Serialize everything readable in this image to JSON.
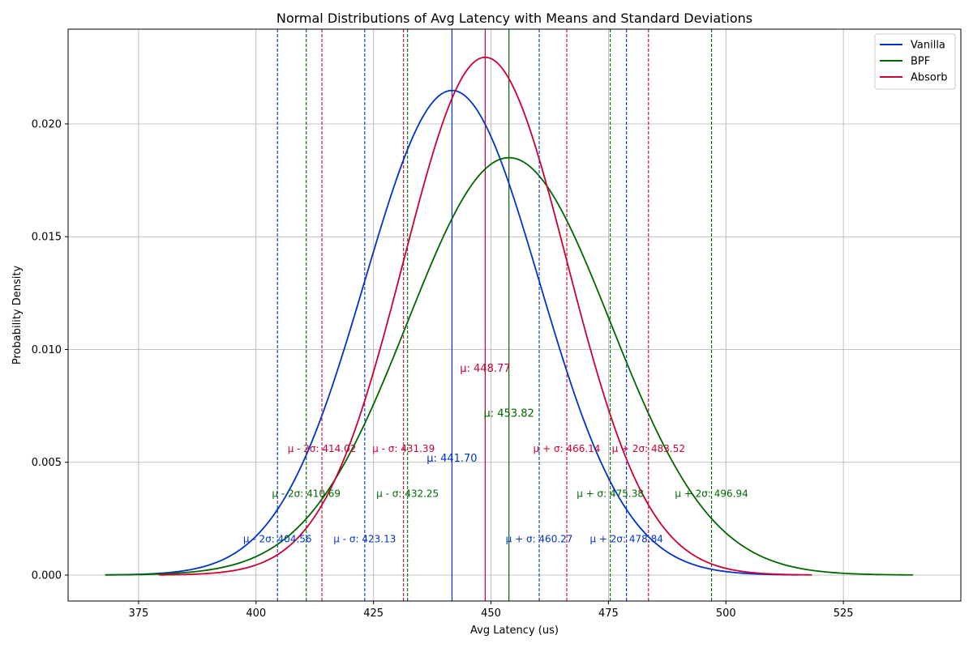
{
  "chart_data": {
    "type": "line",
    "title": "Normal Distributions of Avg Latency with Means and Standard Deviations",
    "xlabel": "Avg Latency (us)",
    "ylabel": "Probability Density",
    "xlim": [
      360,
      550
    ],
    "ylim": [
      -0.00115,
      0.0242
    ],
    "xticks": [
      375,
      400,
      425,
      450,
      475,
      500,
      525
    ],
    "yticks": [
      0.0,
      0.005,
      0.01,
      0.015,
      0.02
    ],
    "ytick_labels": [
      "0.000",
      "0.005",
      "0.010",
      "0.015",
      "0.020"
    ],
    "grid": true,
    "legend_position": "top-right",
    "series": [
      {
        "name": "Vanilla",
        "color": "#0033cc",
        "mean": 441.7,
        "std": 18.57,
        "x_range": [
          367.9,
          515.5
        ],
        "mean_label": "μ: 441.70",
        "mean_label_y": 0.0052,
        "markers": [
          {
            "x": 404.56,
            "label": "μ - 2σ: 404.56"
          },
          {
            "x": 423.13,
            "label": "μ - σ: 423.13"
          },
          {
            "x": 460.27,
            "label": "μ + σ: 460.27"
          },
          {
            "x": 478.84,
            "label": "μ + 2σ: 478.84"
          }
        ],
        "marker_label_y": 0.0016
      },
      {
        "name": "BPF",
        "color": "#006600",
        "mean": 453.82,
        "std": 21.56,
        "x_range": [
          367.9,
          539.8
        ],
        "mean_label": "μ: 453.82",
        "mean_label_y": 0.0072,
        "markers": [
          {
            "x": 410.69,
            "label": "μ - 2σ: 410.69"
          },
          {
            "x": 432.25,
            "label": "μ - σ: 432.25"
          },
          {
            "x": 475.38,
            "label": "μ + σ: 475.38"
          },
          {
            "x": 496.94,
            "label": "μ + 2σ: 496.94"
          }
        ],
        "marker_label_y": 0.0036
      },
      {
        "name": "Absorb",
        "color": "#cc0033",
        "mean": 448.77,
        "std": 17.38,
        "x_range": [
          379.3,
          518.3
        ],
        "mean_label": "μ: 448.77",
        "mean_label_y": 0.0092,
        "markers": [
          {
            "x": 414.02,
            "label": "μ - 2σ: 414.02"
          },
          {
            "x": 431.39,
            "label": "μ - σ: 431.39"
          },
          {
            "x": 466.14,
            "label": "μ + σ: 466.14"
          },
          {
            "x": 483.52,
            "label": "μ + 2σ: 483.52"
          }
        ],
        "marker_label_y": 0.0056
      }
    ]
  }
}
